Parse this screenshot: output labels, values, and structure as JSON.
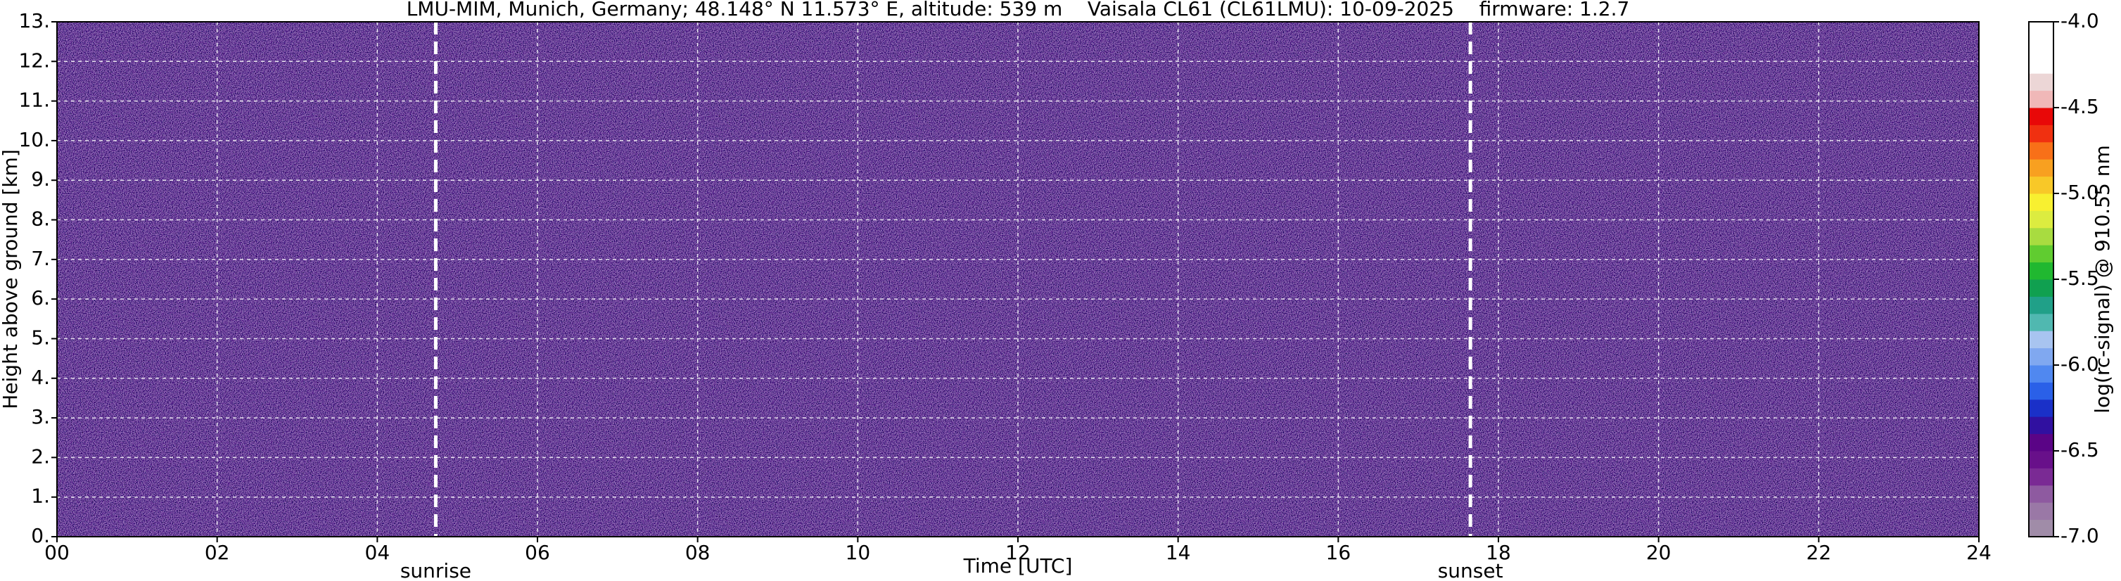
{
  "chart_data": {
    "type": "heatmap",
    "title": "LMU-MIM, Munich, Germany; 48.148° N 11.573° E, altitude: 539 m    Vaisala CL61 (CL61LMU): 10-09-2025    firmware: 1.2.7",
    "x_label": "Time [UTC]",
    "y_label": "Height above ground [km]",
    "xlim": [
      0,
      24
    ],
    "xticks": [
      {
        "value": 0,
        "label": "00"
      },
      {
        "value": 2,
        "label": "02"
      },
      {
        "value": 4,
        "label": "04"
      },
      {
        "value": 6,
        "label": "06"
      },
      {
        "value": 8,
        "label": "08"
      },
      10,
      12,
      14,
      16,
      18,
      20,
      22,
      24
    ],
    "ylim": [
      0,
      13
    ],
    "yticks": [
      {
        "value": 0,
        "label": "0."
      },
      {
        "value": 1,
        "label": "1."
      },
      {
        "value": 2,
        "label": "2."
      },
      {
        "value": 3,
        "label": "3."
      },
      {
        "value": 4,
        "label": "4."
      },
      {
        "value": 5,
        "label": "5."
      },
      {
        "value": 6,
        "label": "6."
      },
      {
        "value": 7,
        "label": "7."
      },
      {
        "value": 8,
        "label": "8."
      },
      {
        "value": 9,
        "label": "9."
      },
      {
        "value": 10,
        "label": "10."
      },
      {
        "value": 11,
        "label": "11."
      },
      {
        "value": 12,
        "label": "12."
      },
      {
        "value": 13,
        "label": "13."
      }
    ],
    "grid": true,
    "annotations": [
      {
        "label": "sunrise",
        "x": 4.73
      },
      {
        "label": "sunset",
        "x": 17.65
      }
    ],
    "colorbar": {
      "label": "log(rc-signal) @ 910.55 nm",
      "lim": [
        -7.0,
        -4.0
      ],
      "ticks": [
        {
          "value": -7.0,
          "label": "-7.0"
        },
        -6.5,
        {
          "value": -6.0,
          "label": "-6.0"
        },
        -5.5,
        {
          "value": -5.0,
          "label": "-5.0"
        },
        -4.5,
        {
          "value": -4.0,
          "label": "-4.0"
        }
      ],
      "colors": [
        "#a08ca8",
        "#9a78a6",
        "#8e5aa0",
        "#7a2a94",
        "#68108a",
        "#5a0486",
        "#3010a0",
        "#1a30c8",
        "#2a60e8",
        "#5088f0",
        "#80a8f0",
        "#a8c4f0",
        "#50b8b0",
        "#20a088",
        "#10a050",
        "#20b830",
        "#60cc30",
        "#a8dc40",
        "#dcec40",
        "#f8f030",
        "#f8c828",
        "#f8a020",
        "#f87018",
        "#f03010",
        "#e80808",
        "#f0b8b8",
        "#ecd6d6",
        "#ffffff",
        "#ffffff",
        "#ffffff"
      ]
    }
  }
}
